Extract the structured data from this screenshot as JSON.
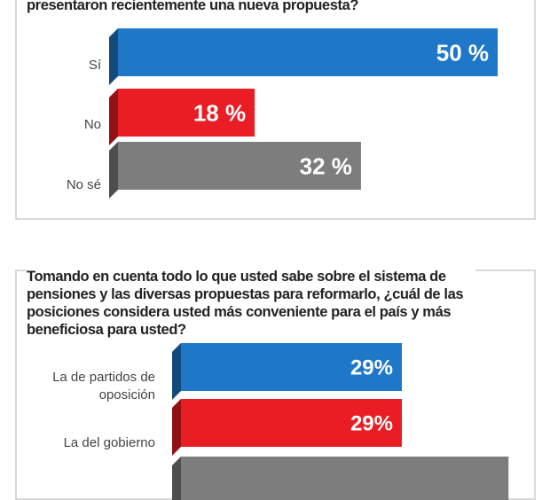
{
  "chart_data": [
    {
      "type": "bar",
      "title": "presentaron recientemente una nueva propuesta?",
      "categories": [
        "Sí",
        "No",
        "No sé"
      ],
      "values": [
        50,
        18,
        32
      ],
      "value_labels": [
        "50 %",
        "18 %",
        "32 %"
      ],
      "colors": [
        "#1f77c8",
        "#ea1c24",
        "#7d7d7d"
      ],
      "xlim": [
        0,
        50
      ]
    },
    {
      "type": "bar",
      "title": "Tomando en cuenta todo lo que usted sabe sobre el sistema de pensiones y las diversas propuestas para reformarlo, ¿cuál de las posiciones considera usted más conveniente para el país y más beneficiosa para usted?",
      "categories": [
        "La de partidos de oposición",
        "La del gobierno",
        ""
      ],
      "values": [
        29,
        29,
        43
      ],
      "value_labels": [
        "29%",
        "29%",
        ""
      ],
      "colors": [
        "#1f77c8",
        "#ea1c24",
        "#7d7d7d"
      ],
      "xlim": [
        0,
        50
      ]
    }
  ]
}
